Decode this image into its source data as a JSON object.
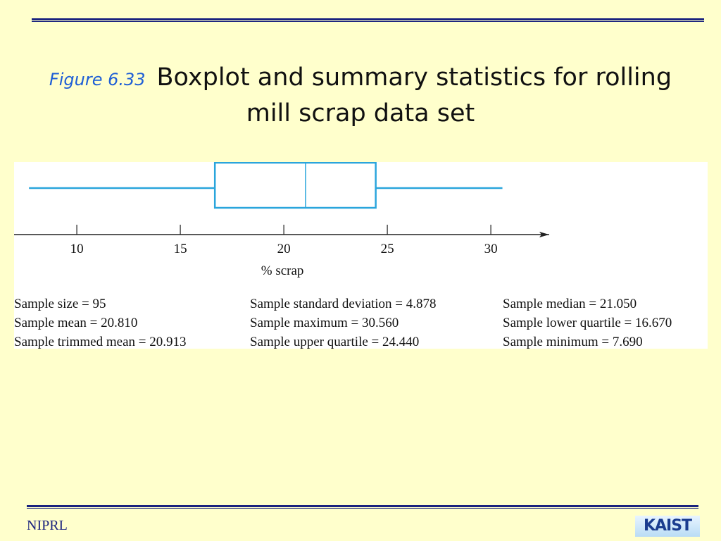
{
  "slide": {
    "figure_label": "Figure 6.33",
    "title": "Boxplot and summary statistics for rolling mill scrap data set",
    "footer": "NIPRL",
    "logo": "KAIST"
  },
  "chart_data": {
    "type": "boxplot",
    "color": "#2aa5dc",
    "min": 7.69,
    "q1": 16.67,
    "median": 21.05,
    "q3": 24.44,
    "max": 30.56,
    "xlabel": "% scrap",
    "xlim": [
      6.97,
      32.82
    ],
    "xticks": [
      10,
      15,
      20,
      25,
      30
    ],
    "stats": [
      [
        "Sample size = 95",
        "Sample mean = 20.810",
        "Sample trimmed mean = 20.913"
      ],
      [
        "Sample standard deviation = 4.878",
        "Sample maximum = 30.560",
        "Sample upper quartile = 24.440"
      ],
      [
        "Sample median = 21.050",
        "Sample lower quartile = 16.670",
        "Sample minimum = 7.690"
      ]
    ]
  }
}
